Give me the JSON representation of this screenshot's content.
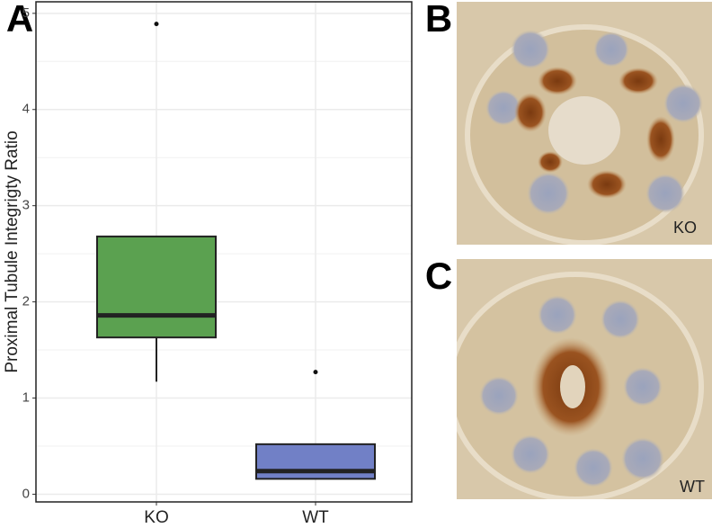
{
  "chart_data": {
    "type": "box",
    "y_label": "Proximal Tubule Integrigty Ratio",
    "categories": [
      "KO",
      "WT"
    ],
    "colors": [
      "#5ba150",
      "#7180c6"
    ],
    "boxes": [
      {
        "whislo": 1.17,
        "q1": 1.63,
        "med": 1.86,
        "q3": 2.68,
        "whishi": 2.68,
        "fliers": [
          4.89
        ]
      },
      {
        "whislo": 0.16,
        "q1": 0.16,
        "med": 0.24,
        "q3": 0.52,
        "whishi": 0.52,
        "fliers": [
          1.27
        ]
      }
    ],
    "ylim": [
      -0.08,
      5.12
    ],
    "yticks": [
      0,
      1,
      2,
      3,
      4,
      5
    ],
    "grid": true
  },
  "figure": {
    "panel_labels": [
      "A",
      "B",
      "C"
    ],
    "image_labels": [
      "KO",
      "WT"
    ]
  }
}
